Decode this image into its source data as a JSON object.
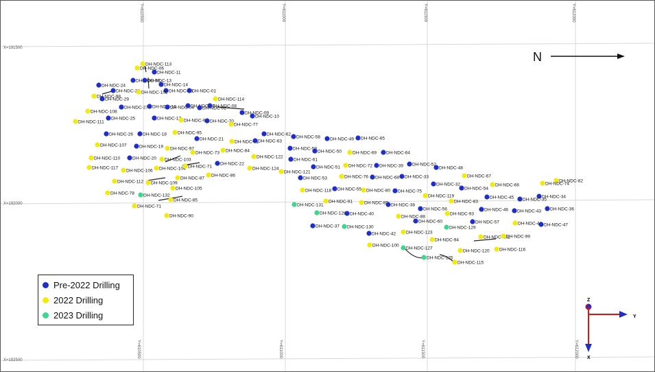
{
  "grid": {
    "y_labels": [
      "Y=610500",
      "Y=611000",
      "Y=611500",
      "Y=612000"
    ],
    "x_labels": [
      "X=191500",
      "X=192000",
      "X=192500"
    ]
  },
  "north_label": "N",
  "axis_labels": {
    "z": "Z",
    "y": "Y",
    "x": "X"
  },
  "legend": [
    {
      "label": "Pre-2022 Drilling",
      "color": "#1E2FC8"
    },
    {
      "label": "2022 Drilling",
      "color": "#F2EA0A"
    },
    {
      "label": "2023 Drilling",
      "color": "#3DD68C"
    }
  ],
  "colors": {
    "pre": "#1E2FC8",
    "y2022": "#F2EA0A",
    "y2023": "#3DD68C",
    "trace": "#222222",
    "grid": "#d8d8d8"
  },
  "holes": [
    {
      "name": "DH-NDC-113",
      "c": "y2022"
    },
    {
      "name": "DH-NDC-06",
      "c": "y2022"
    },
    {
      "name": "DH-NDC-11",
      "c": "pre"
    },
    {
      "name": "DH-NDC-09",
      "c": "pre"
    },
    {
      "name": "DH-NDC-13",
      "c": "pre"
    },
    {
      "name": "DH-NDC-14",
      "c": "pre"
    },
    {
      "name": "DH-NDC-24",
      "c": "pre"
    },
    {
      "name": "DH-NDC-28",
      "c": "pre"
    },
    {
      "name": "DH-NDC-98",
      "c": "y2022"
    },
    {
      "name": "DH-NDC-15",
      "c": "pre"
    },
    {
      "name": "DH-NDC-01",
      "c": "pre"
    },
    {
      "name": "DH-NDC-102",
      "c": "y2022"
    },
    {
      "name": "DH-NDC-29",
      "c": "pre"
    },
    {
      "name": "DH-NDC-114",
      "c": "y2022"
    },
    {
      "name": "DH-NDC-27",
      "c": "pre"
    },
    {
      "name": "DH-NDC-16",
      "c": "pre"
    },
    {
      "name": "DH-NDC-04",
      "c": "pre"
    },
    {
      "name": "DH-NDC-03",
      "c": "pre"
    },
    {
      "name": "DH-NDC-02",
      "c": "pre"
    },
    {
      "name": "DH-NDC-08",
      "c": "pre"
    },
    {
      "name": "DH-NDC-09",
      "c": "pre"
    },
    {
      "name": "DH-NDC-108",
      "c": "y2022"
    },
    {
      "name": "DH-NDC-10",
      "c": "pre"
    },
    {
      "name": "DH-NDC-111",
      "c": "y2022"
    },
    {
      "name": "DH-NDC-25",
      "c": "pre"
    },
    {
      "name": "DH-NDC-17",
      "c": "pre"
    },
    {
      "name": "DH-NDC-93",
      "c": "y2022"
    },
    {
      "name": "DH-NDC-70",
      "c": "pre"
    },
    {
      "name": "DH-NDC-77",
      "c": "y2022"
    },
    {
      "name": "DH-NDC-26",
      "c": "pre"
    },
    {
      "name": "DH-NDC-18",
      "c": "pre"
    },
    {
      "name": "DH-NDC-95",
      "c": "y2022"
    },
    {
      "name": "DH-NDC-62",
      "c": "pre"
    },
    {
      "name": "DH-NDC-58",
      "c": "pre"
    },
    {
      "name": "DH-NDC-21",
      "c": "pre"
    },
    {
      "name": "DH-NDC-81",
      "c": "y2022"
    },
    {
      "name": "DH-NDC-63",
      "c": "pre"
    },
    {
      "name": "DH-NDC-49",
      "c": "pre"
    },
    {
      "name": "DH-NDC-65",
      "c": "pre"
    },
    {
      "name": "DH-NDC-107",
      "c": "y2022"
    },
    {
      "name": "DH-NDC-19",
      "c": "pre"
    },
    {
      "name": "DH-NDC-97",
      "c": "y2022"
    },
    {
      "name": "DH-NDC-84",
      "c": "y2022"
    },
    {
      "name": "DH-NDC-59",
      "c": "pre"
    },
    {
      "name": "DH-NDC-50",
      "c": "pre"
    },
    {
      "name": "DH-NDC-69",
      "c": "y2022"
    },
    {
      "name": "DH-NDC-64",
      "c": "pre"
    },
    {
      "name": "DH-NDC-73",
      "c": "y2022"
    },
    {
      "name": "DH-NDC-110",
      "c": "y2022"
    },
    {
      "name": "DH-NDC-20",
      "c": "pre"
    },
    {
      "name": "DH-NDC-103",
      "c": "y2022"
    },
    {
      "name": "DH-NDC-122",
      "c": "y2022"
    },
    {
      "name": "DH-NDC-61",
      "c": "pre"
    },
    {
      "name": "DH-NDC-22",
      "c": "pre"
    },
    {
      "name": "DH-NDC-117",
      "c": "y2022"
    },
    {
      "name": "DH-NDC-106",
      "c": "y2022"
    },
    {
      "name": "DH-NDC-104",
      "c": "y2022"
    },
    {
      "name": "DH-NDC-71",
      "c": "y2022"
    },
    {
      "name": "DH-NDC-124",
      "c": "y2022"
    },
    {
      "name": "DH-NDC-121",
      "c": "y2022"
    },
    {
      "name": "DH-NDC-51",
      "c": "pre"
    },
    {
      "name": "DH-NDC-72",
      "c": "y2022"
    },
    {
      "name": "DH-NDC-39",
      "c": "pre"
    },
    {
      "name": "DH-NDC-52",
      "c": "pre"
    },
    {
      "name": "DH-NDC-48",
      "c": "pre"
    },
    {
      "name": "DH-NDC-87",
      "c": "y2022"
    },
    {
      "name": "DH-NDC-86",
      "c": "y2022"
    },
    {
      "name": "DH-NDC-53",
      "c": "pre"
    },
    {
      "name": "DH-NDC-76",
      "c": "y2022"
    },
    {
      "name": "DH-NDC-68",
      "c": "pre"
    },
    {
      "name": "DH-NDC-33",
      "c": "pre"
    },
    {
      "name": "DH-NDC-67",
      "c": "y2022"
    },
    {
      "name": "DH-NDC-82",
      "c": "y2022"
    },
    {
      "name": "DH-NDC-112",
      "c": "y2022"
    },
    {
      "name": "DH-NDC-109",
      "c": "y2022"
    },
    {
      "name": "DH-NDC-105",
      "c": "y2022"
    },
    {
      "name": "DH-NDC-32",
      "c": "pre"
    },
    {
      "name": "DH-NDC-66",
      "c": "y2022"
    },
    {
      "name": "DH-NDC-74",
      "c": "y2022"
    },
    {
      "name": "DH-NDC-78",
      "c": "y2022"
    },
    {
      "name": "DH-NDC-132",
      "c": "y2023"
    },
    {
      "name": "DH-NDC-118",
      "c": "y2022"
    },
    {
      "name": "DH-NDC-55",
      "c": "pre"
    },
    {
      "name": "DH-NDC-80",
      "c": "y2022"
    },
    {
      "name": "DH-NDC-75",
      "c": "pre"
    },
    {
      "name": "DH-NDC-54",
      "c": "pre"
    },
    {
      "name": "DH-NDC-34",
      "c": "pre"
    },
    {
      "name": "DH-NDC-85",
      "c": "y2022"
    },
    {
      "name": "DH-NDC-119",
      "c": "y2022"
    },
    {
      "name": "DH-NDC-45",
      "c": "pre"
    },
    {
      "name": "DH-NDC-35",
      "c": "pre"
    },
    {
      "name": "DH-NDC-71",
      "c": "y2022"
    },
    {
      "name": "DH-NDC-131",
      "c": "y2023"
    },
    {
      "name": "DH-NDC-91",
      "c": "y2022"
    },
    {
      "name": "DH-NDC-89",
      "c": "y2022"
    },
    {
      "name": "DH-NDC-83",
      "c": "y2022"
    },
    {
      "name": "DH-NDC-38",
      "c": "pre"
    },
    {
      "name": "DH-NDC-56",
      "c": "pre"
    },
    {
      "name": "DH-NDC-46",
      "c": "pre"
    },
    {
      "name": "DH-NDC-43",
      "c": "pre"
    },
    {
      "name": "DH-NDC-36",
      "c": "pre"
    },
    {
      "name": "DH-NDC-90",
      "c": "y2022"
    },
    {
      "name": "DH-NDC-128",
      "c": "y2023"
    },
    {
      "name": "DH-NDC-93",
      "c": "y2022"
    },
    {
      "name": "DH-NDC-40",
      "c": "pre"
    },
    {
      "name": "DH-NDC-88",
      "c": "y2022"
    },
    {
      "name": "DH-NDC-60",
      "c": "pre"
    },
    {
      "name": "DH-NDC-57",
      "c": "pre"
    },
    {
      "name": "DH-NDC-44",
      "c": "y2022"
    },
    {
      "name": "DH-NDC-47",
      "c": "pre"
    },
    {
      "name": "DH-NDC-37",
      "c": "pre"
    },
    {
      "name": "DH-NDC-130",
      "c": "y2023"
    },
    {
      "name": "DH-NDC-129",
      "c": "y2023"
    },
    {
      "name": "DH-NDC-42",
      "c": "pre"
    },
    {
      "name": "DH-NDC-123",
      "c": "y2022"
    },
    {
      "name": "DH-NDC-101",
      "c": "y2022"
    },
    {
      "name": "DH-NDC-99",
      "c": "y2022"
    },
    {
      "name": "DH-NDC-94",
      "c": "y2022"
    },
    {
      "name": "DH-NDC-100",
      "c": "y2022"
    },
    {
      "name": "DH-NDC-127",
      "c": "y2023"
    },
    {
      "name": "DH-NDC-120",
      "c": "y2022"
    },
    {
      "name": "DH-NDC-116",
      "c": "y2022"
    },
    {
      "name": "DH-NDC-125",
      "c": "y2023"
    },
    {
      "name": "DH-NDC-115",
      "c": "y2022"
    },
    {
      "name": "DH-NDC-126",
      "c": "y2023"
    }
  ]
}
